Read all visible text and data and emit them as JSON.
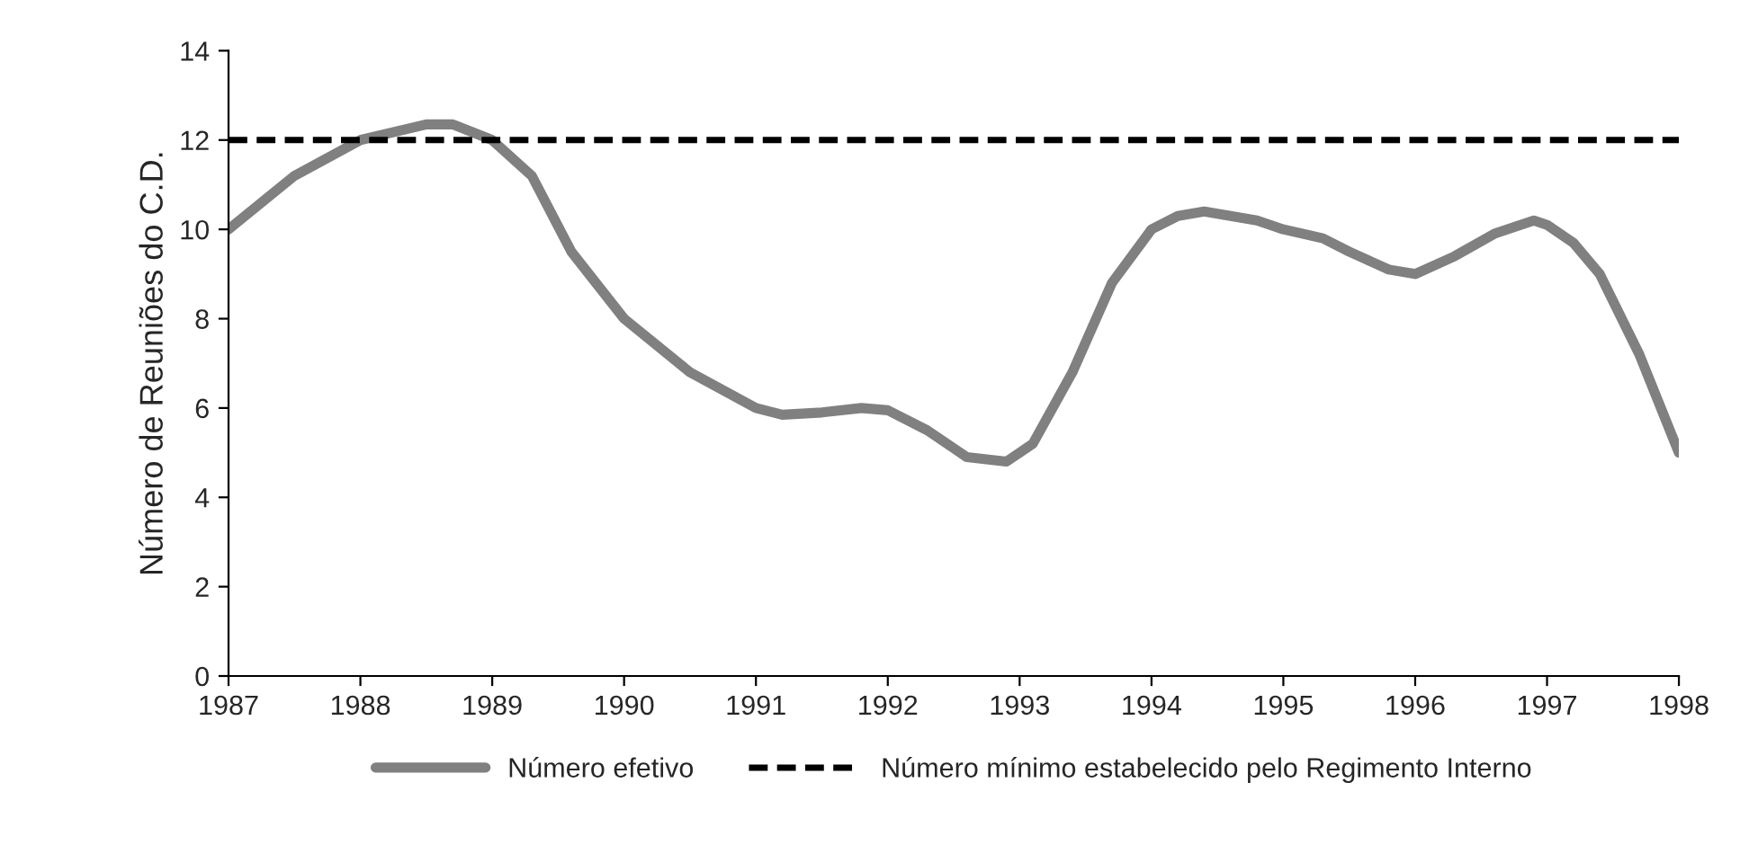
{
  "chart_data": {
    "type": "line",
    "ylabel": "Número de Reuniões do C.D.",
    "x": [
      1987,
      1987.5,
      1988,
      1988.5,
      1988.7,
      1989,
      1989.3,
      1989.6,
      1990,
      1990.5,
      1991,
      1991.2,
      1991.5,
      1991.8,
      1992,
      1992.3,
      1992.6,
      1992.9,
      1993.1,
      1993.4,
      1993.7,
      1994,
      1994.2,
      1994.4,
      1994.8,
      1995,
      1995.3,
      1995.5,
      1995.8,
      1996,
      1996.3,
      1996.6,
      1996.9,
      1997,
      1997.2,
      1997.4,
      1997.7,
      1998
    ],
    "series": [
      {
        "name": "Número efetivo",
        "color": "#808080",
        "values": [
          10,
          11.2,
          12,
          12.35,
          12.35,
          12,
          11.2,
          9.5,
          8,
          6.8,
          6,
          5.85,
          5.9,
          6,
          5.95,
          5.5,
          4.9,
          4.8,
          5.2,
          6.8,
          8.8,
          10,
          10.3,
          10.4,
          10.2,
          10,
          9.8,
          9.5,
          9.1,
          9,
          9.4,
          9.9,
          10.2,
          10.1,
          9.7,
          9,
          7.2,
          5
        ]
      }
    ],
    "ref_lines": [
      {
        "axis": "y",
        "value": 12,
        "label": "Número mínimo estabelecido pelo Regimento Interno",
        "color": "#000000",
        "line_style": "dashed"
      }
    ],
    "xlim": [
      1987,
      1998
    ],
    "xticks": [
      1987,
      1988,
      1989,
      1990,
      1991,
      1992,
      1993,
      1994,
      1995,
      1996,
      1997,
      1998
    ],
    "ylim": [
      0,
      14
    ],
    "yticks": [
      0,
      2,
      4,
      6,
      8,
      10,
      12,
      14
    ],
    "grid": false,
    "legend": "bottom",
    "line_style": "solid",
    "marker": "none"
  }
}
